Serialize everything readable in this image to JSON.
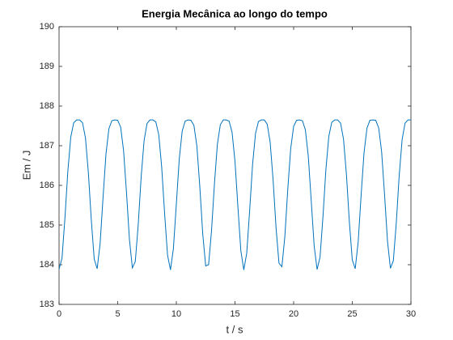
{
  "chart_data": {
    "type": "line",
    "title": "Energia Mecânica ao longo do tempo",
    "xlabel": "t / s",
    "ylabel": "Em / J",
    "xlim": [
      0,
      30
    ],
    "ylim": [
      183,
      190
    ],
    "xticks": [
      0,
      5,
      10,
      15,
      20,
      25,
      30
    ],
    "yticks": [
      183,
      184,
      185,
      186,
      187,
      188,
      189,
      190
    ],
    "grid": false,
    "x": [
      0,
      0.25,
      0.5,
      0.75,
      1,
      1.25,
      1.5,
      1.75,
      2,
      2.25,
      2.5,
      2.75,
      3,
      3.25,
      3.5,
      3.75,
      4,
      4.25,
      4.5,
      4.75,
      5,
      5.25,
      5.5,
      5.75,
      6,
      6.25,
      6.5,
      6.75,
      7,
      7.25,
      7.5,
      7.75,
      8,
      8.25,
      8.5,
      8.75,
      9,
      9.25,
      9.5,
      9.75,
      10,
      10.25,
      10.5,
      10.75,
      11,
      11.25,
      11.5,
      11.75,
      12,
      12.25,
      12.5,
      12.75,
      13,
      13.25,
      13.5,
      13.75,
      14,
      14.25,
      14.5,
      14.75,
      15,
      15.25,
      15.5,
      15.75,
      16,
      16.25,
      16.5,
      16.75,
      17,
      17.25,
      17.5,
      17.75,
      18,
      18.25,
      18.5,
      18.75,
      19,
      19.25,
      19.5,
      19.75,
      20,
      20.25,
      20.5,
      20.75,
      21,
      21.25,
      21.5,
      21.75,
      22,
      22.25,
      22.5,
      22.75,
      23,
      23.25,
      23.5,
      23.75,
      24,
      24.25,
      24.5,
      24.75,
      25,
      25.25,
      25.5,
      25.75,
      26,
      26.25,
      26.5,
      26.75,
      27,
      27.25,
      27.5,
      27.75,
      28,
      28.25,
      28.5,
      28.75,
      29,
      29.25,
      29.5,
      29.75,
      30
    ],
    "series": [
      {
        "name": "Em",
        "color": "#0072bd",
        "values": [
          183.89,
          184.16,
          185.17,
          186.36,
          187.22,
          187.58,
          187.65,
          187.65,
          187.58,
          187.2,
          186.32,
          185.12,
          184.14,
          183.9,
          184.53,
          185.69,
          186.79,
          187.43,
          187.63,
          187.65,
          187.64,
          187.47,
          186.88,
          185.82,
          184.64,
          183.92,
          184.08,
          185.01,
          186.21,
          187.13,
          187.56,
          187.65,
          187.65,
          187.6,
          187.28,
          186.46,
          185.29,
          184.24,
          183.87,
          184.41,
          185.53,
          186.67,
          187.37,
          187.62,
          187.65,
          187.64,
          187.51,
          186.99,
          185.97,
          184.78,
          183.97,
          184.0,
          184.86,
          186.05,
          187.04,
          187.53,
          187.65,
          187.65,
          187.62,
          187.34,
          186.6,
          185.45,
          184.35,
          183.87,
          184.29,
          185.37,
          186.53,
          187.31,
          187.61,
          187.65,
          187.65,
          187.54,
          187.08,
          186.13,
          184.93,
          184.04,
          183.95,
          184.71,
          185.9,
          186.93,
          187.49,
          187.64,
          187.65,
          187.63,
          187.4,
          186.73,
          185.61,
          184.47,
          183.88,
          184.19,
          185.21,
          186.4,
          187.24,
          187.59,
          187.65,
          187.65,
          187.57,
          187.17,
          186.28,
          185.08,
          184.12,
          183.9,
          184.57,
          185.74,
          186.82,
          187.44,
          187.64,
          187.65,
          187.64,
          187.45,
          186.85,
          185.77,
          184.6,
          183.91,
          184.1,
          185.05,
          186.25,
          187.16,
          187.57,
          187.65,
          187.65
        ]
      }
    ]
  }
}
